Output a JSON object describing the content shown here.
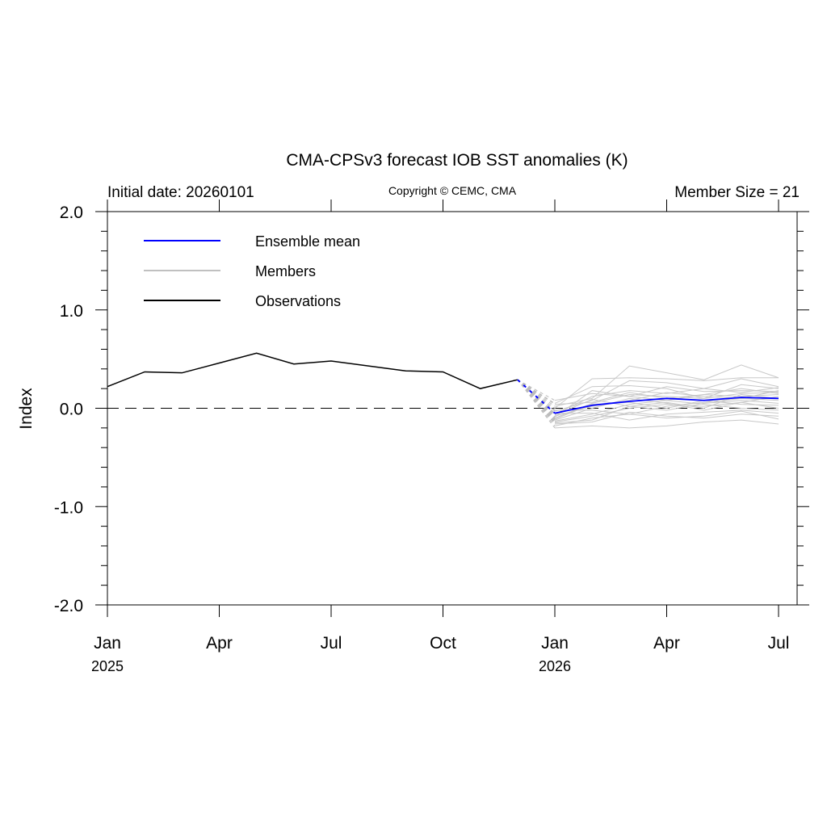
{
  "chart_data": {
    "type": "line",
    "title": "CMA-CPSv3 forecast IOB SST anomalies (K)",
    "subtitle_left": "Initial date: 20260101",
    "subtitle_center": "Copyright © CEMC, CMA",
    "subtitle_right": "Member Size = 21",
    "ylabel": "Index",
    "ylim": [
      -2.0,
      2.0
    ],
    "yticks": [
      "2.0",
      "1.0",
      "0.0",
      "-1.0",
      "-2.0"
    ],
    "ytick_values": [
      2,
      1,
      0,
      -1,
      -2
    ],
    "xticks": [
      {
        "month": 0,
        "label": "Jan",
        "year": "2025"
      },
      {
        "month": 3,
        "label": "Apr",
        "year": ""
      },
      {
        "month": 6,
        "label": "Jul",
        "year": ""
      },
      {
        "month": 9,
        "label": "Oct",
        "year": ""
      },
      {
        "month": 12,
        "label": "Jan",
        "year": "2026"
      },
      {
        "month": 15,
        "label": "Apr",
        "year": ""
      },
      {
        "month": 18,
        "label": "Jul",
        "year": ""
      }
    ],
    "xlim_months": [
      0,
      18.5
    ],
    "legend": {
      "placement": "top-left",
      "entries": [
        {
          "label": "Ensemble mean",
          "color": "#0000ff"
        },
        {
          "label": "Members",
          "color": "#c0c0c0"
        },
        {
          "label": "Observations",
          "color": "#000000"
        }
      ]
    },
    "observations": {
      "months": [
        0,
        1,
        2,
        3,
        4,
        5,
        6,
        7,
        8,
        9,
        10,
        11
      ],
      "values": [
        0.22,
        0.37,
        0.36,
        0.46,
        0.56,
        0.45,
        0.48,
        0.43,
        0.38,
        0.37,
        0.2,
        0.29
      ]
    },
    "forecast_months": [
      12,
      13,
      14,
      15,
      16,
      17,
      18
    ],
    "ensemble_mean": [
      -0.05,
      0.03,
      0.07,
      0.1,
      0.08,
      0.11,
      0.1
    ],
    "members": [
      [
        -0.2,
        -0.18,
        -0.2,
        -0.18,
        -0.14,
        -0.12,
        -0.16
      ],
      [
        -0.18,
        -0.1,
        -0.06,
        -0.1,
        -0.08,
        -0.03,
        -0.11
      ],
      [
        -0.15,
        -0.12,
        0.02,
        -0.02,
        0.05,
        0.08,
        0.05
      ],
      [
        -0.12,
        0.0,
        0.1,
        0.05,
        -0.02,
        0.06,
        0.12
      ],
      [
        -0.1,
        0.05,
        0.14,
        0.12,
        0.1,
        0.15,
        0.16
      ],
      [
        -0.08,
        0.02,
        0.08,
        0.16,
        0.12,
        0.1,
        0.18
      ],
      [
        -0.06,
        0.12,
        0.18,
        0.15,
        0.2,
        0.16,
        0.21
      ],
      [
        -0.05,
        -0.05,
        -0.12,
        -0.06,
        -0.04,
        -0.02,
        -0.05
      ],
      [
        -0.03,
        0.08,
        0.28,
        0.26,
        0.2,
        0.3,
        0.22
      ],
      [
        0.0,
        0.3,
        0.31,
        0.3,
        0.28,
        0.31,
        0.31
      ],
      [
        0.02,
        0.1,
        0.43,
        0.36,
        0.29,
        0.44,
        0.31
      ],
      [
        0.05,
        0.22,
        0.23,
        0.2,
        0.1,
        0.24,
        0.2
      ],
      [
        0.08,
        0.15,
        0.12,
        0.08,
        0.14,
        0.12,
        0.14
      ],
      [
        -0.14,
        -0.08,
        0.0,
        0.04,
        0.02,
        0.06,
        0.0
      ],
      [
        -0.16,
        -0.14,
        -0.04,
        -0.08,
        -0.1,
        -0.06,
        -0.08
      ],
      [
        -0.11,
        0.04,
        0.06,
        0.0,
        0.08,
        0.04,
        0.03
      ],
      [
        -0.02,
        -0.02,
        -0.06,
        0.02,
        0.06,
        0.1,
        0.08
      ],
      [
        -0.09,
        0.18,
        0.12,
        0.22,
        0.17,
        0.18,
        0.17
      ],
      [
        0.04,
        0.06,
        0.16,
        0.1,
        0.14,
        0.2,
        0.15
      ],
      [
        -0.13,
        -0.06,
        0.04,
        0.08,
        0.04,
        0.0,
        -0.02
      ],
      [
        -0.07,
        0.09,
        0.02,
        0.06,
        0.0,
        0.14,
        0.1
      ]
    ]
  }
}
